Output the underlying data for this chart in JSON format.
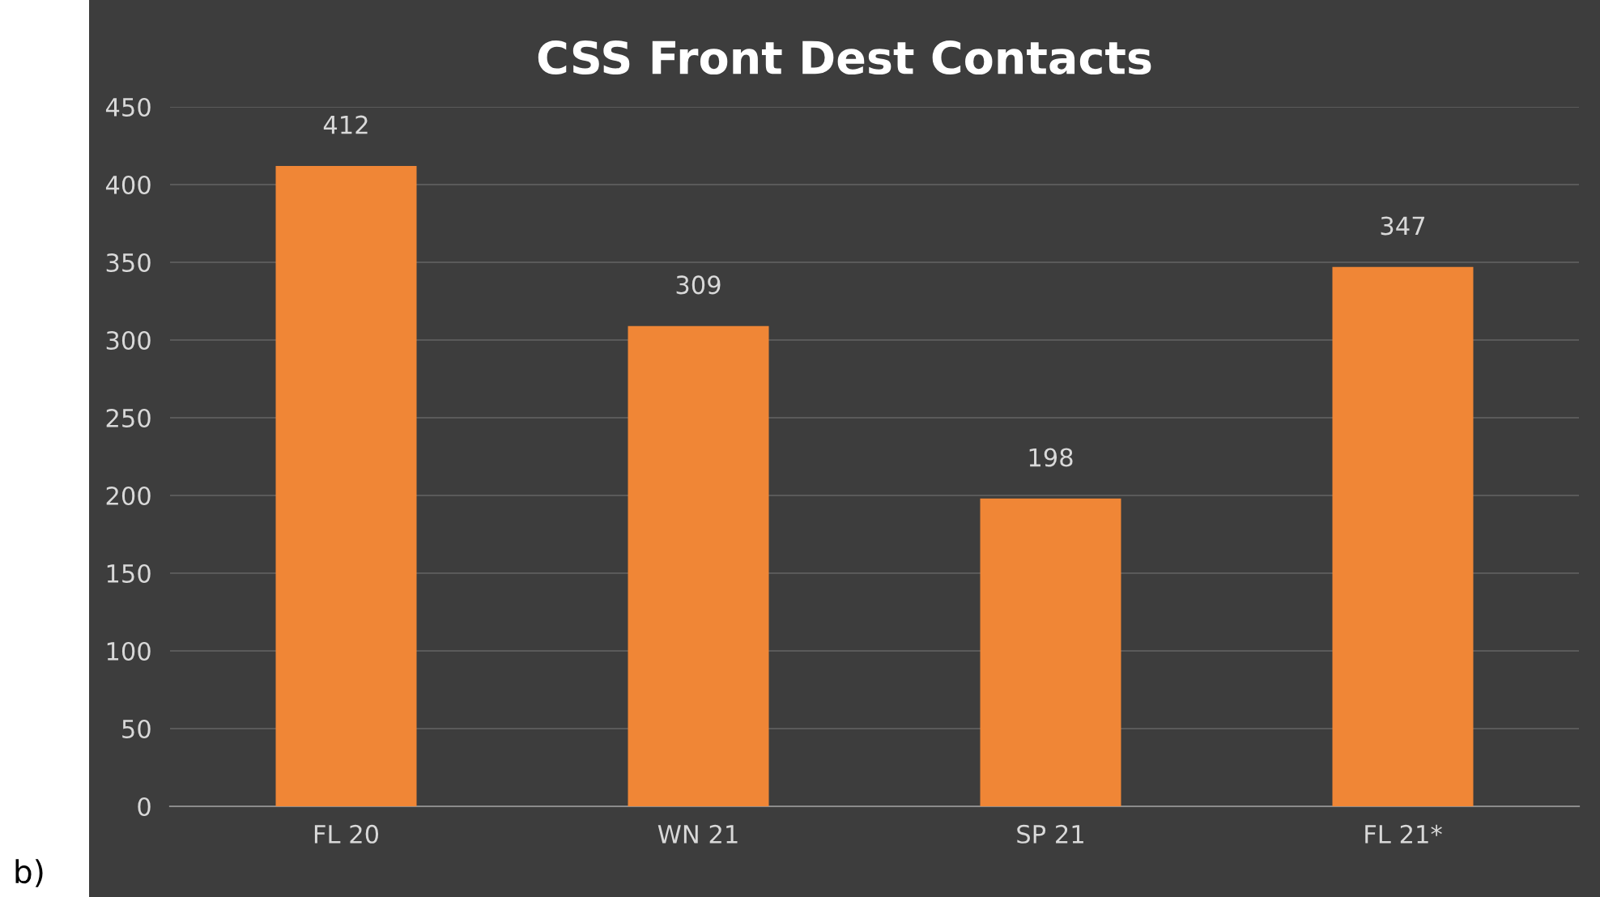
{
  "chart_data": {
    "type": "bar",
    "title": "CSS Front Dest Contacts",
    "categories": [
      "FL 20",
      "WN 21",
      "SP 21",
      "FL 21*"
    ],
    "values": [
      412,
      309,
      198,
      347
    ],
    "color": "#f08636",
    "ylim": [
      0,
      450
    ],
    "yticks": [
      0,
      50,
      100,
      150,
      200,
      250,
      300,
      350,
      400,
      450
    ],
    "grid": "y",
    "data_labels": true,
    "annotations": [
      "b)"
    ]
  }
}
